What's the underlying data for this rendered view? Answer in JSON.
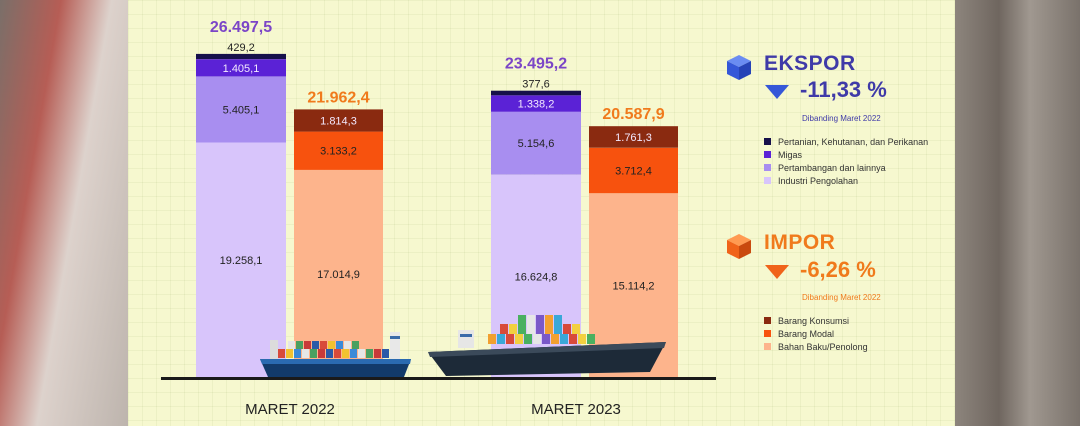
{
  "chart_data": {
    "type": "bar",
    "stacked": true,
    "groups": [
      "MARET 2022",
      "MARET 2023"
    ],
    "ekspor": {
      "title": "EKSPOR",
      "change": "-11,33 %",
      "note": "Dibanding Maret 2022",
      "color": "#7b45c7",
      "totals": [
        "26.497,5",
        "23.495,2"
      ],
      "total_values": [
        26497.5,
        23495.2
      ],
      "series": [
        {
          "name": "Industri Pengolahan",
          "color": "#d8c5fb",
          "values": [
            19258.1,
            16624.8
          ],
          "labels": [
            "19.258,1",
            "16.624,8"
          ]
        },
        {
          "name": "Pertambangan dan lainnya",
          "color": "#a88ef0",
          "values": [
            5405.1,
            5154.6
          ],
          "labels": [
            "5.405,1",
            "5.154,6"
          ]
        },
        {
          "name": "Migas",
          "color": "#5b22d6",
          "values": [
            1405.1,
            1338.2
          ],
          "labels": [
            "1.405,1",
            "1.338,2"
          ]
        },
        {
          "name": "Pertanian, Kehutanan, dan Perikanan",
          "color": "#16104a",
          "values": [
            429.2,
            377.6
          ],
          "labels": [
            "429,2",
            "377,6"
          ]
        }
      ]
    },
    "impor": {
      "title": "IMPOR",
      "change": "-6,26 %",
      "note": "Dibanding Maret 2022",
      "color": "#f07a1c",
      "totals": [
        "21.962,4",
        "20.587,9"
      ],
      "total_values": [
        21962.4,
        20587.9
      ],
      "series": [
        {
          "name": "Bahan Baku/Penolong",
          "color": "#fdb48c",
          "values": [
            17014.9,
            15114.2
          ],
          "labels": [
            "17.014,9",
            "15.114,2"
          ]
        },
        {
          "name": "Barang Modal",
          "color": "#f7520e",
          "values": [
            3133.2,
            3712.4
          ],
          "labels": [
            "3.133,2",
            "3.712,4"
          ]
        },
        {
          "name": "Barang Konsumsi",
          "color": "#8a2a10",
          "values": [
            1814.3,
            1761.3
          ],
          "labels": [
            "1.814,3",
            "1.761,3"
          ]
        }
      ]
    }
  }
}
